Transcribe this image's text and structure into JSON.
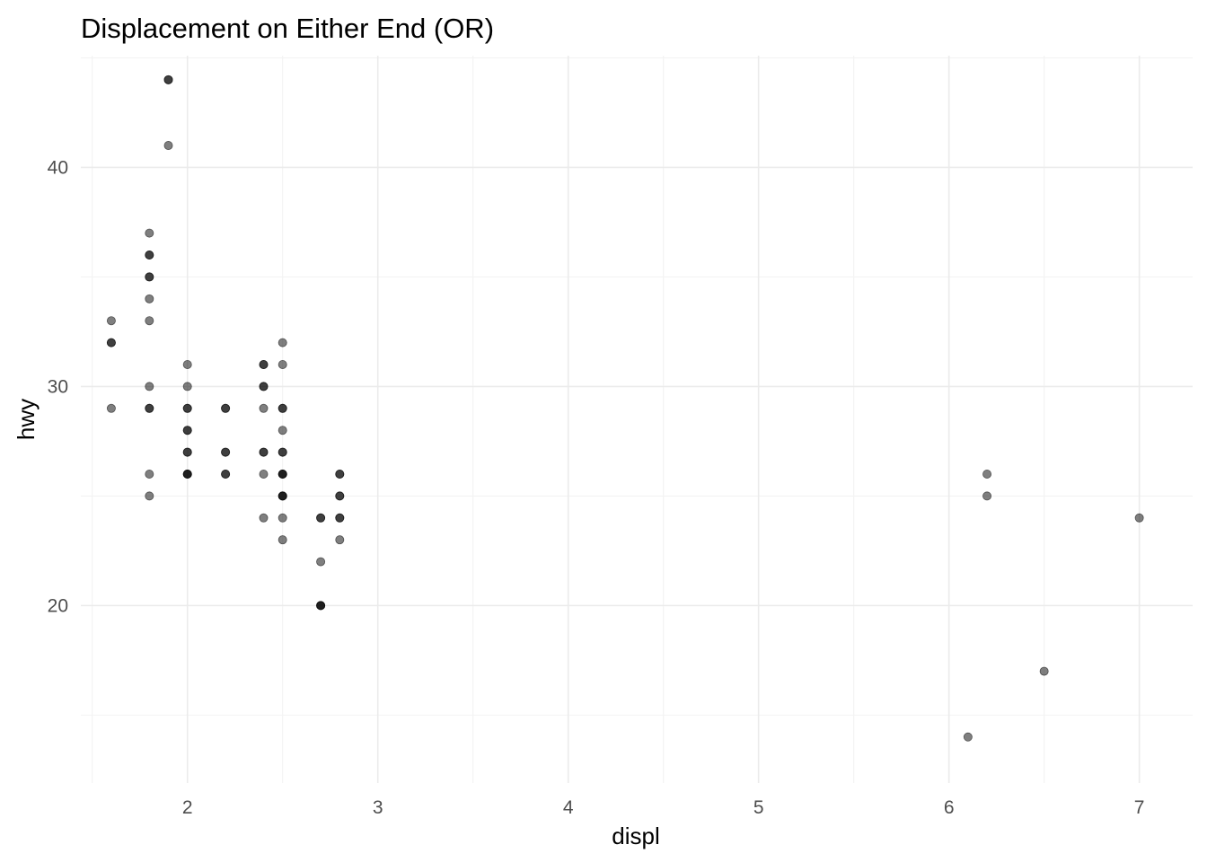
{
  "chart_data": {
    "type": "scatter",
    "title": "Displacement on Either End (OR)",
    "xlabel": "displ",
    "ylabel": "hwy",
    "xlim": [
      1.44,
      7.28
    ],
    "ylim": [
      11.9,
      45.1
    ],
    "x_ticks": [
      2,
      3,
      4,
      5,
      6,
      7
    ],
    "y_ticks": [
      20,
      30,
      40
    ],
    "grid": true,
    "point_color": "#000000",
    "point_alpha": 0.5,
    "points": [
      {
        "x": 1.6,
        "y": 33
      },
      {
        "x": 1.6,
        "y": 32
      },
      {
        "x": 1.6,
        "y": 32
      },
      {
        "x": 1.6,
        "y": 29
      },
      {
        "x": 1.8,
        "y": 37
      },
      {
        "x": 1.8,
        "y": 36
      },
      {
        "x": 1.8,
        "y": 36
      },
      {
        "x": 1.8,
        "y": 35
      },
      {
        "x": 1.8,
        "y": 35
      },
      {
        "x": 1.8,
        "y": 34
      },
      {
        "x": 1.8,
        "y": 33
      },
      {
        "x": 1.8,
        "y": 30
      },
      {
        "x": 1.8,
        "y": 29
      },
      {
        "x": 1.8,
        "y": 29
      },
      {
        "x": 1.8,
        "y": 26
      },
      {
        "x": 1.8,
        "y": 25
      },
      {
        "x": 1.9,
        "y": 44
      },
      {
        "x": 1.9,
        "y": 44
      },
      {
        "x": 1.9,
        "y": 41
      },
      {
        "x": 2.0,
        "y": 31
      },
      {
        "x": 2.0,
        "y": 30
      },
      {
        "x": 2.0,
        "y": 29
      },
      {
        "x": 2.0,
        "y": 29
      },
      {
        "x": 2.0,
        "y": 28
      },
      {
        "x": 2.0,
        "y": 28
      },
      {
        "x": 2.0,
        "y": 27
      },
      {
        "x": 2.0,
        "y": 27
      },
      {
        "x": 2.0,
        "y": 26
      },
      {
        "x": 2.0,
        "y": 26
      },
      {
        "x": 2.0,
        "y": 26
      },
      {
        "x": 2.2,
        "y": 29
      },
      {
        "x": 2.2,
        "y": 29
      },
      {
        "x": 2.2,
        "y": 27
      },
      {
        "x": 2.2,
        "y": 27
      },
      {
        "x": 2.2,
        "y": 26
      },
      {
        "x": 2.2,
        "y": 26
      },
      {
        "x": 2.4,
        "y": 31
      },
      {
        "x": 2.4,
        "y": 31
      },
      {
        "x": 2.4,
        "y": 30
      },
      {
        "x": 2.4,
        "y": 30
      },
      {
        "x": 2.4,
        "y": 29
      },
      {
        "x": 2.4,
        "y": 27
      },
      {
        "x": 2.4,
        "y": 27
      },
      {
        "x": 2.4,
        "y": 26
      },
      {
        "x": 2.4,
        "y": 24
      },
      {
        "x": 2.5,
        "y": 32
      },
      {
        "x": 2.5,
        "y": 31
      },
      {
        "x": 2.5,
        "y": 29
      },
      {
        "x": 2.5,
        "y": 29
      },
      {
        "x": 2.5,
        "y": 28
      },
      {
        "x": 2.5,
        "y": 27
      },
      {
        "x": 2.5,
        "y": 27
      },
      {
        "x": 2.5,
        "y": 26
      },
      {
        "x": 2.5,
        "y": 26
      },
      {
        "x": 2.5,
        "y": 26
      },
      {
        "x": 2.5,
        "y": 25
      },
      {
        "x": 2.5,
        "y": 25
      },
      {
        "x": 2.5,
        "y": 25
      },
      {
        "x": 2.5,
        "y": 24
      },
      {
        "x": 2.5,
        "y": 23
      },
      {
        "x": 2.7,
        "y": 24
      },
      {
        "x": 2.7,
        "y": 24
      },
      {
        "x": 2.7,
        "y": 22
      },
      {
        "x": 2.7,
        "y": 20
      },
      {
        "x": 2.7,
        "y": 20
      },
      {
        "x": 2.7,
        "y": 20
      },
      {
        "x": 2.8,
        "y": 26
      },
      {
        "x": 2.8,
        "y": 26
      },
      {
        "x": 2.8,
        "y": 25
      },
      {
        "x": 2.8,
        "y": 25
      },
      {
        "x": 2.8,
        "y": 24
      },
      {
        "x": 2.8,
        "y": 24
      },
      {
        "x": 2.8,
        "y": 23
      },
      {
        "x": 6.1,
        "y": 14
      },
      {
        "x": 6.2,
        "y": 26
      },
      {
        "x": 6.2,
        "y": 25
      },
      {
        "x": 6.5,
        "y": 17
      },
      {
        "x": 7.0,
        "y": 24
      }
    ]
  }
}
